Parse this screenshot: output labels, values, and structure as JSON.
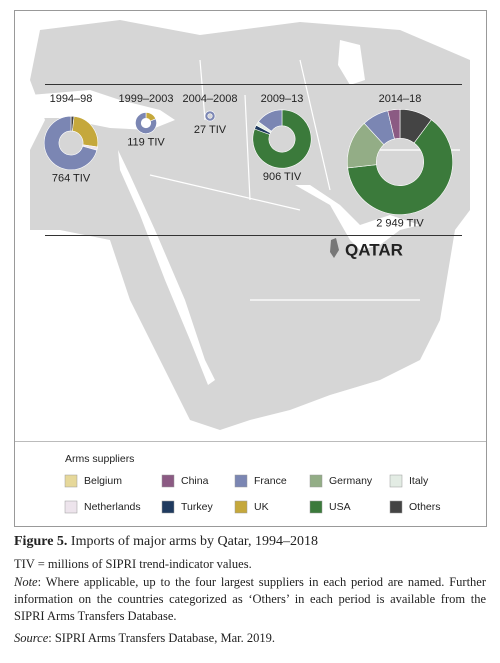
{
  "chart_data": {
    "type": "donut",
    "categories": [
      "1994–98",
      "1999–2003",
      "2004–2008",
      "2009–13",
      "2014–18"
    ],
    "values": [
      764,
      119,
      27,
      906,
      2949
    ],
    "value_labels": [
      "764 TIV",
      "119 TIV",
      "27 TIV",
      "906 TIV",
      "2 949 TIV"
    ],
    "series": [
      {
        "name": "Belgium",
        "color": "#e6d89a",
        "values": [
          null,
          null,
          null,
          null,
          null
        ]
      },
      {
        "name": "China",
        "color": "#8b5a83",
        "values": [
          null,
          null,
          null,
          null,
          110
        ]
      },
      {
        "name": "France",
        "color": "#7b86b3",
        "values": [
          540,
          97,
          27,
          135,
          240
        ]
      },
      {
        "name": "Germany",
        "color": "#93ad86",
        "values": [
          null,
          null,
          null,
          null,
          440
        ]
      },
      {
        "name": "Italy",
        "color": "#e3ece4",
        "values": [
          null,
          null,
          null,
          21,
          null
        ]
      },
      {
        "name": "Netherlands",
        "color": "#ede4ec",
        "values": [
          15,
          null,
          null,
          null,
          null
        ]
      },
      {
        "name": "Turkey",
        "color": "#1f3a5f",
        "values": [
          null,
          null,
          null,
          20,
          null
        ]
      },
      {
        "name": "UK",
        "color": "#c5a83c",
        "values": [
          195,
          22,
          null,
          null,
          null
        ]
      },
      {
        "name": "USA",
        "color": "#3b7a3b",
        "values": [
          null,
          null,
          null,
          730,
          1859
        ]
      },
      {
        "name": "Others",
        "color": "#444444",
        "values": [
          14,
          null,
          null,
          null,
          300
        ]
      }
    ],
    "annotation": "QATAR",
    "legend_title": "Arms suppliers"
  },
  "caption": {
    "figure_label": "Figure 5.",
    "figure_title": "Imports of major arms by Qatar, 1994–2018",
    "tiv_note": "TIV = millions of SIPRI trend-indicator values.",
    "note_label": "Note",
    "note_text": ": Where applicable, up to the four largest suppliers in each period are named. Further information on the countries categorized as ‘Others’ in each period is available from the SIPRI Arms Transfers Database.",
    "source_label": "Source",
    "source_text": ": SIPRI Arms Transfers Database, Mar. 2019."
  }
}
